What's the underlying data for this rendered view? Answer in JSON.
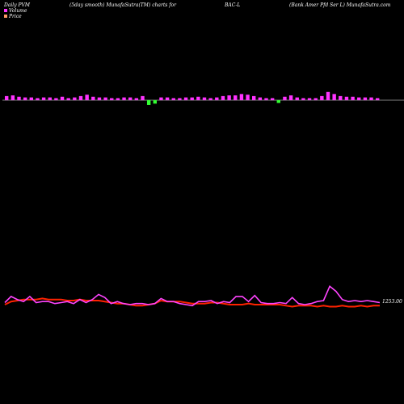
{
  "chart_data": {
    "type": "bar",
    "header": {
      "left": "Daily PVM",
      "center_left": "(5day smooth) MunafaSutra(TM) charts for",
      "center": "BAC-L",
      "right": "(Bank Amer Pfd Ser L) MunafaSutra.com"
    },
    "legend": [
      {
        "label": "Volume",
        "color": "#ff33ff"
      },
      {
        "label": "Price",
        "color": "#ff9966"
      }
    ],
    "colors": {
      "background": "#000000",
      "volume_up": "#ff33ff",
      "volume_down": "#33ff33",
      "baseline": "#aaaaaa",
      "pvm_line": "#aa44ff",
      "pvm_line_highlight": "#ff44ff",
      "price_line": "#ff2200"
    },
    "price_label": "1253.00",
    "volume_bars": [
      {
        "v": 6,
        "d": "up"
      },
      {
        "v": 7,
        "d": "up"
      },
      {
        "v": 5,
        "d": "up"
      },
      {
        "v": 4,
        "d": "up"
      },
      {
        "v": 4,
        "d": "up"
      },
      {
        "v": 3,
        "d": "up"
      },
      {
        "v": 4,
        "d": "up"
      },
      {
        "v": 4,
        "d": "up"
      },
      {
        "v": 3,
        "d": "up"
      },
      {
        "v": 5,
        "d": "up"
      },
      {
        "v": 3,
        "d": "up"
      },
      {
        "v": 4,
        "d": "up"
      },
      {
        "v": 6,
        "d": "up"
      },
      {
        "v": 8,
        "d": "up"
      },
      {
        "v": 5,
        "d": "up"
      },
      {
        "v": 4,
        "d": "up"
      },
      {
        "v": 4,
        "d": "up"
      },
      {
        "v": 3,
        "d": "up"
      },
      {
        "v": 3,
        "d": "up"
      },
      {
        "v": 4,
        "d": "up"
      },
      {
        "v": 4,
        "d": "up"
      },
      {
        "v": 3,
        "d": "up"
      },
      {
        "v": 6,
        "d": "up"
      },
      {
        "v": 7,
        "d": "down"
      },
      {
        "v": 5,
        "d": "down"
      },
      {
        "v": 4,
        "d": "up"
      },
      {
        "v": 4,
        "d": "up"
      },
      {
        "v": 3,
        "d": "up"
      },
      {
        "v": 3,
        "d": "up"
      },
      {
        "v": 4,
        "d": "up"
      },
      {
        "v": 4,
        "d": "up"
      },
      {
        "v": 5,
        "d": "up"
      },
      {
        "v": 4,
        "d": "up"
      },
      {
        "v": 3,
        "d": "up"
      },
      {
        "v": 4,
        "d": "up"
      },
      {
        "v": 6,
        "d": "up"
      },
      {
        "v": 7,
        "d": "up"
      },
      {
        "v": 7,
        "d": "up"
      },
      {
        "v": 9,
        "d": "up"
      },
      {
        "v": 8,
        "d": "up"
      },
      {
        "v": 6,
        "d": "up"
      },
      {
        "v": 4,
        "d": "up"
      },
      {
        "v": 3,
        "d": "up"
      },
      {
        "v": 3,
        "d": "up"
      },
      {
        "v": 4,
        "d": "down"
      },
      {
        "v": 5,
        "d": "up"
      },
      {
        "v": 7,
        "d": "up"
      },
      {
        "v": 4,
        "d": "up"
      },
      {
        "v": 3,
        "d": "up"
      },
      {
        "v": 3,
        "d": "up"
      },
      {
        "v": 3,
        "d": "up"
      },
      {
        "v": 6,
        "d": "up"
      },
      {
        "v": 12,
        "d": "up"
      },
      {
        "v": 9,
        "d": "up"
      },
      {
        "v": 6,
        "d": "up"
      },
      {
        "v": 5,
        "d": "up"
      },
      {
        "v": 5,
        "d": "up"
      },
      {
        "v": 4,
        "d": "up"
      },
      {
        "v": 4,
        "d": "up"
      },
      {
        "v": 4,
        "d": "up"
      },
      {
        "v": 3,
        "d": "up"
      }
    ],
    "pvm_series": [
      52,
      58,
      55,
      53,
      58,
      52,
      53,
      53,
      51,
      52,
      53,
      51,
      55,
      52,
      55,
      60,
      57,
      51,
      53,
      51,
      50,
      51,
      51,
      50,
      51,
      56,
      53,
      53,
      51,
      50,
      49,
      53,
      53,
      54,
      51,
      53,
      52,
      58,
      58,
      53,
      59,
      52,
      51,
      51,
      52,
      51,
      57,
      51,
      50,
      51,
      53,
      54,
      68,
      63,
      55,
      53,
      54,
      53,
      54,
      53,
      52
    ],
    "price_series": [
      50,
      53,
      54,
      55,
      55,
      55,
      56,
      55,
      55,
      55,
      54,
      54,
      55,
      54,
      54,
      54,
      53,
      52,
      51,
      51,
      50,
      49,
      49,
      50,
      51,
      54,
      53,
      53,
      53,
      52,
      51,
      51,
      51,
      52,
      52,
      51,
      50,
      50,
      50,
      51,
      50,
      50,
      50,
      50,
      50,
      49,
      48,
      49,
      49,
      49,
      48,
      49,
      48,
      48,
      49,
      48,
      48,
      49,
      48,
      49,
      49
    ]
  }
}
